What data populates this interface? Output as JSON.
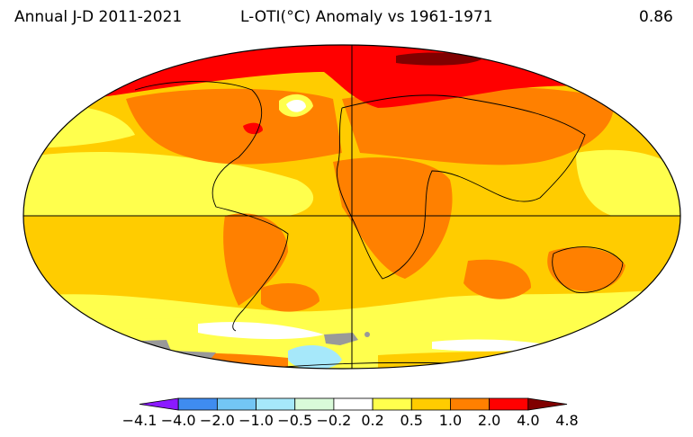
{
  "header": {
    "left": "Annual J-D 2011-2021",
    "middle": "L-OTI(°C) Anomaly vs 1961-1971",
    "right": "0.86"
  },
  "legend": {
    "ticks": [
      "−4.1",
      "−4.0",
      "−2.0",
      "−1.0",
      "−0.5",
      "−0.2",
      "0.2",
      "0.5",
      "1.0",
      "2.0",
      "4.0",
      "4.8"
    ],
    "bins": [
      {
        "color": "#8b1aff"
      },
      {
        "color": "#3f8cf0"
      },
      {
        "color": "#73c6f5"
      },
      {
        "color": "#a6e8fa"
      },
      {
        "color": "#d9fad9"
      },
      {
        "color": "#ffffff"
      },
      {
        "color": "#ffff4d"
      },
      {
        "color": "#ffcc00"
      },
      {
        "color": "#ff8000"
      },
      {
        "color": "#ff0000"
      },
      {
        "color": "#800000"
      }
    ]
  },
  "map": {
    "projection": "robinson",
    "missing_data_color": "#999999",
    "gridline_color": "#000000"
  }
}
